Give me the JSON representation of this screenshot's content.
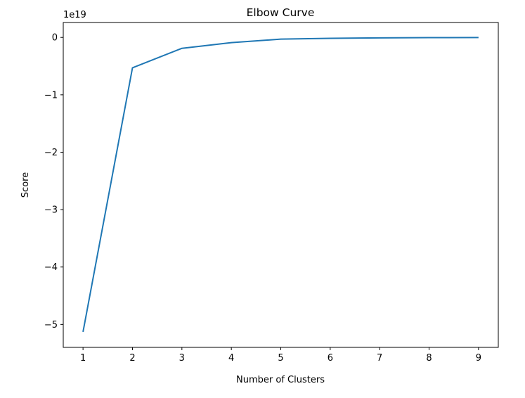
{
  "chart_data": {
    "type": "line",
    "title": "Elbow Curve",
    "xlabel": "Number of Clusters",
    "ylabel": "Score",
    "y_offset_label": "1e19",
    "x": [
      1,
      2,
      3,
      4,
      5,
      6,
      7,
      8,
      9
    ],
    "series": [
      {
        "values": [
          -5.13,
          -0.53,
          -0.19,
          -0.09,
          -0.03,
          -0.015,
          -0.008,
          -0.004,
          -0.002
        ],
        "color": "#1f77b4"
      }
    ],
    "xlim": [
      0.6,
      9.4
    ],
    "ylim": [
      -5.4,
      0.26
    ],
    "x_ticks": [
      1,
      2,
      3,
      4,
      5,
      6,
      7,
      8,
      9
    ],
    "x_tick_labels": [
      "1",
      "2",
      "3",
      "4",
      "5",
      "6",
      "7",
      "8",
      "9"
    ],
    "y_ticks": [
      0,
      -1,
      -2,
      -3,
      -4,
      -5
    ],
    "y_tick_labels": [
      "0",
      "−1",
      "−2",
      "−3",
      "−4",
      "−5"
    ],
    "grid": false,
    "legend": false
  }
}
